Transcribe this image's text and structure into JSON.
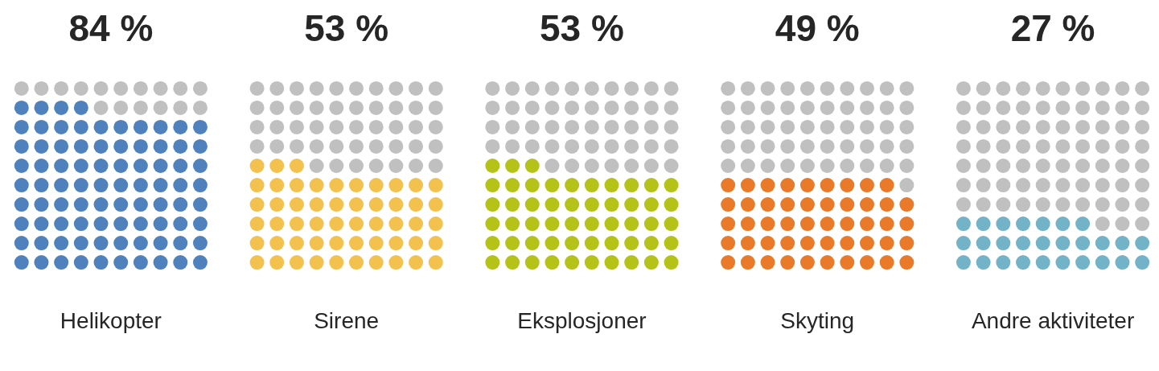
{
  "chart_data": {
    "type": "other",
    "categories": [
      "Helikopter",
      "Sirene",
      "Eksplosjoner",
      "Skyting",
      "Andre aktiviteter"
    ],
    "values": [
      84,
      53,
      53,
      49,
      27
    ],
    "value_labels": [
      "84 %",
      "53 %",
      "53 %",
      "49 %",
      "27 %"
    ],
    "colors": [
      "#4f81bd",
      "#f2c14e",
      "#b5c318",
      "#e87a2a",
      "#72b3c8"
    ]
  }
}
